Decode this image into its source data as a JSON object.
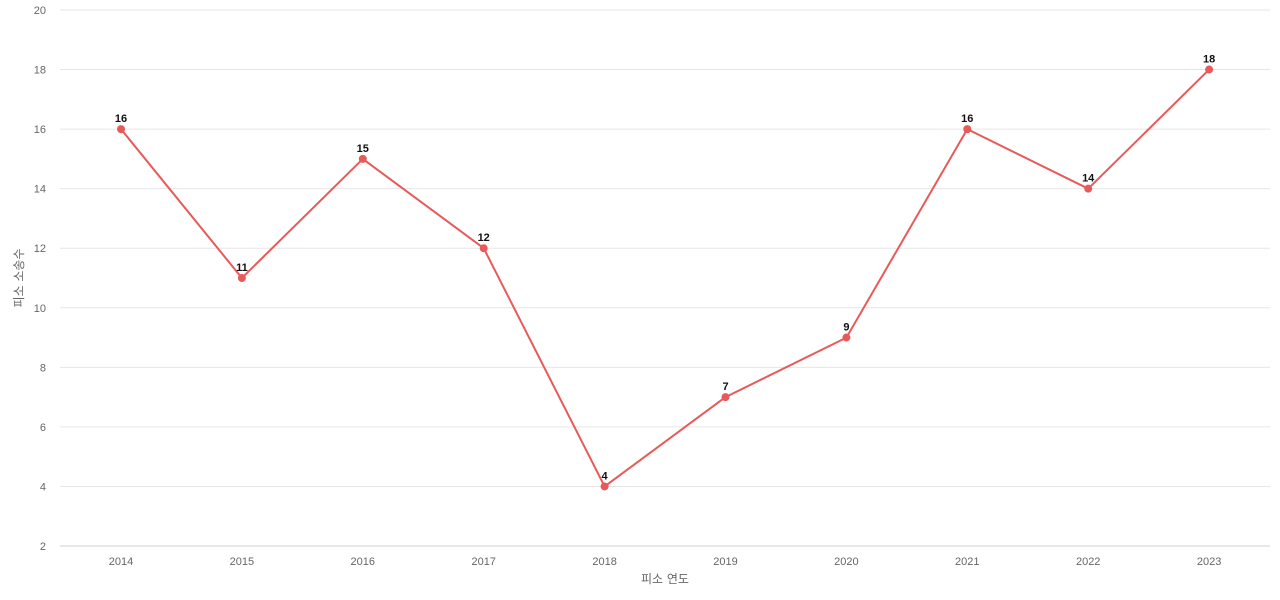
{
  "chart_data": {
    "type": "line",
    "title": "",
    "xlabel": "피소 연도",
    "ylabel": "피소 소송수",
    "categories": [
      "2014",
      "2015",
      "2016",
      "2017",
      "2018",
      "2019",
      "2020",
      "2021",
      "2022",
      "2023"
    ],
    "series": [
      {
        "values": [
          16,
          11,
          15,
          12,
          4,
          7,
          9,
          16,
          14,
          18
        ]
      }
    ],
    "ylim": [
      2,
      20
    ],
    "yticks": [
      2,
      4,
      6,
      8,
      10,
      12,
      14,
      16,
      18,
      20
    ],
    "grid": true,
    "legend": "none",
    "data_labels": true,
    "line_color": "#e85a5a"
  }
}
